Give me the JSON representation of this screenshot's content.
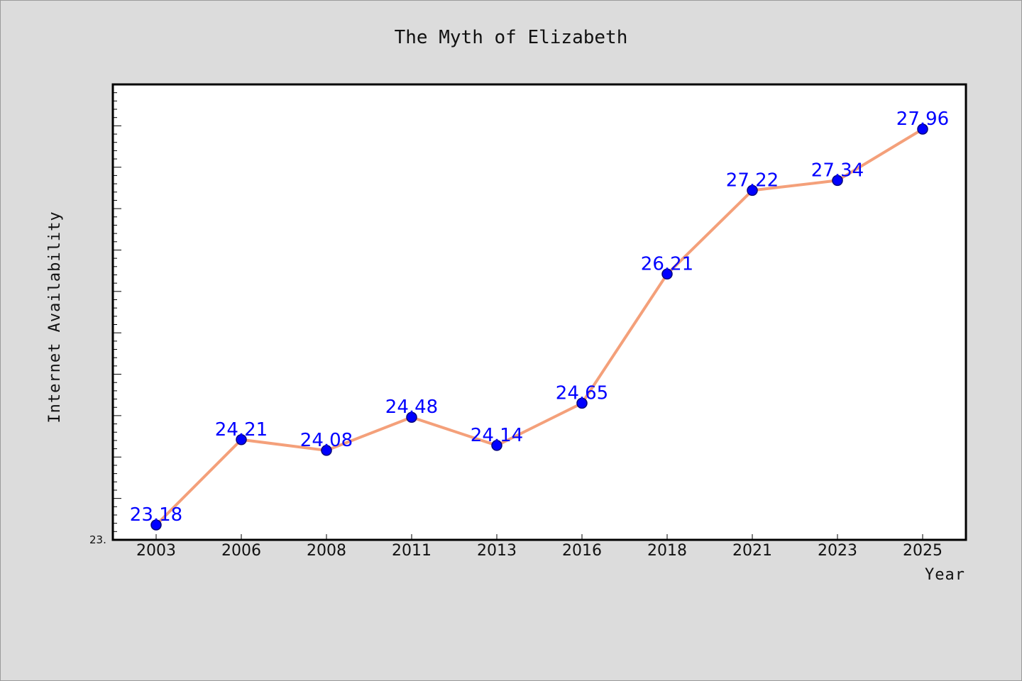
{
  "chart_data": {
    "type": "line",
    "title": "The Myth of Elizabeth",
    "xlabel": "Year",
    "ylabel": "Internet Availability",
    "categories": [
      "2003",
      "2006",
      "2008",
      "2011",
      "2013",
      "2016",
      "2018",
      "2021",
      "2023",
      "2025"
    ],
    "series": [
      {
        "values": [
          23.18,
          24.21,
          24.08,
          24.48,
          24.14,
          24.65,
          26.21,
          27.22,
          27.34,
          27.96
        ],
        "labels": [
          "23.18",
          "24.21",
          "24.08",
          "24.48",
          "24.14",
          "24.65",
          "26.21",
          "27.22",
          "27.34",
          "27.96"
        ]
      }
    ],
    "y_tick_labels": [
      "23."
    ],
    "ylim": [
      23.0,
      28.5
    ],
    "grid": false,
    "line_color": "#f4a07a",
    "marker_color": "#0000ff",
    "label_color": "#0000ff",
    "plot_background": "#ffffff",
    "figure_background": "#dcdcdc"
  }
}
